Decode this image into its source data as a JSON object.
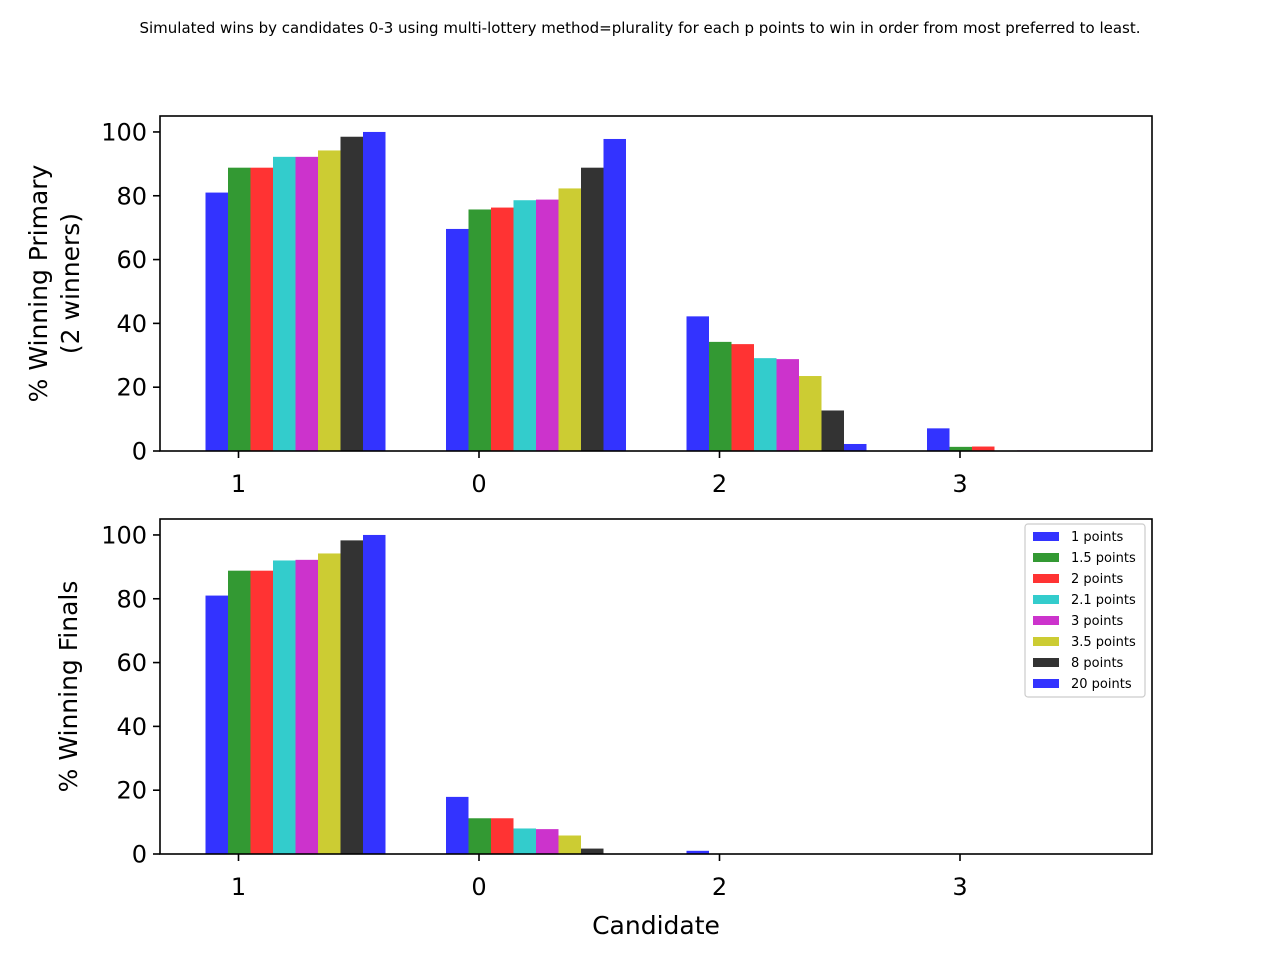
{
  "suptitle": "Simulated wins by candidates 0-3 using multi-lottery method=plurality for each p points to win in order from most preferred to least.",
  "xlabel": "Candidate",
  "legend": [
    {
      "label": "1 points",
      "color": "#3333ff"
    },
    {
      "label": "1.5 points",
      "color": "#339933"
    },
    {
      "label": "2 points",
      "color": "#ff3333"
    },
    {
      "label": "2.1 points",
      "color": "#33cccc"
    },
    {
      "label": "3 points",
      "color": "#cc33cc"
    },
    {
      "label": "3.5 points",
      "color": "#cccc33"
    },
    {
      "label": "8 points",
      "color": "#333333"
    },
    {
      "label": "20 points",
      "color": "#3333ff"
    }
  ],
  "chart_data": [
    {
      "type": "bar",
      "ylabel": [
        "% Winning Primary",
        "(2 winners)"
      ],
      "categories": [
        "1",
        "0",
        "2",
        "3"
      ],
      "ylim": [
        0,
        105
      ],
      "yticks": [
        0,
        20,
        40,
        60,
        80,
        100
      ],
      "legend_position": "none",
      "series": [
        {
          "name": "1 points",
          "values": [
            81,
            69.6,
            42.2,
            7.1
          ]
        },
        {
          "name": "1.5 points",
          "values": [
            88.8,
            75.7,
            34.2,
            1.3
          ]
        },
        {
          "name": "2 points",
          "values": [
            88.8,
            76.3,
            33.5,
            1.4
          ]
        },
        {
          "name": "2.1 points",
          "values": [
            92.2,
            78.6,
            29.1,
            0.1
          ]
        },
        {
          "name": "3 points",
          "values": [
            92.2,
            78.8,
            28.8,
            0.2
          ]
        },
        {
          "name": "3.5 points",
          "values": [
            94.2,
            82.3,
            23.5,
            0
          ]
        },
        {
          "name": "8 points",
          "values": [
            98.5,
            88.8,
            12.7,
            0
          ]
        },
        {
          "name": "20 points",
          "values": [
            100,
            97.8,
            2.2,
            0
          ]
        }
      ]
    },
    {
      "type": "bar",
      "ylabel": [
        "% Winning Finals"
      ],
      "xlabel": "Candidate",
      "categories": [
        "1",
        "0",
        "2",
        "3"
      ],
      "ylim": [
        0,
        105
      ],
      "yticks": [
        0,
        20,
        40,
        60,
        80,
        100
      ],
      "legend_position": "top-right",
      "series": [
        {
          "name": "1 points",
          "values": [
            81,
            17.9,
            1,
            0
          ]
        },
        {
          "name": "1.5 points",
          "values": [
            88.8,
            11.2,
            0,
            0
          ]
        },
        {
          "name": "2 points",
          "values": [
            88.8,
            11.2,
            0,
            0
          ]
        },
        {
          "name": "2.1 points",
          "values": [
            92,
            8,
            0,
            0
          ]
        },
        {
          "name": "3 points",
          "values": [
            92.2,
            7.8,
            0,
            0
          ]
        },
        {
          "name": "3.5 points",
          "values": [
            94.2,
            5.8,
            0,
            0
          ]
        },
        {
          "name": "8 points",
          "values": [
            98.3,
            1.7,
            0,
            0
          ]
        },
        {
          "name": "20 points",
          "values": [
            100,
            0,
            0,
            0
          ]
        }
      ]
    }
  ]
}
